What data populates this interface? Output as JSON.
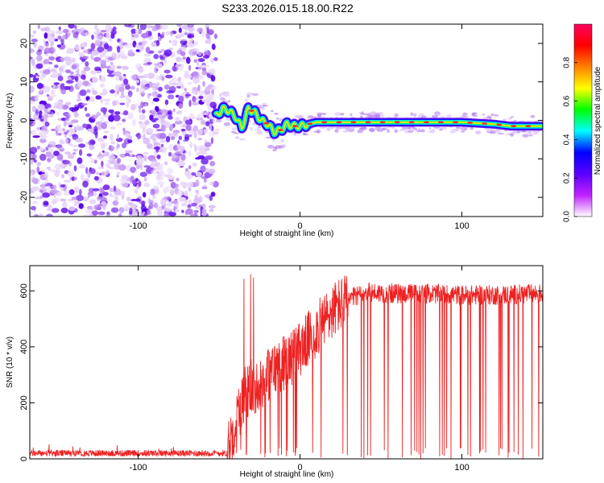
{
  "title": "S233.2026.015.18.00.R22",
  "chart_data": [
    {
      "type": "heatmap",
      "xlabel": "Height of straight line (km)",
      "ylabel": "Frequency (Hz)",
      "xlim": [
        -167,
        150
      ],
      "ylim": [
        -25,
        25
      ],
      "xticks": [
        -100,
        0,
        100
      ],
      "yticks": [
        -20,
        -10,
        0,
        10,
        20
      ],
      "noise_region_x": [
        -167,
        -52
      ],
      "ridge": {
        "x": [
          -52,
          -48,
          -44,
          -40,
          -36,
          -32,
          -28,
          -24,
          -20,
          -16,
          -12,
          -8,
          -4,
          0,
          5,
          10,
          20,
          40,
          60,
          80,
          100,
          120,
          130,
          140,
          148
        ],
        "freq": [
          1,
          3,
          2.5,
          1,
          -2,
          3,
          2,
          0,
          -1,
          -3,
          -2.5,
          -1,
          -1.5,
          -1.5,
          -1,
          -0.5,
          -0.5,
          -0.5,
          -0.5,
          -0.5,
          -0.5,
          -1,
          -1.5,
          -1.5,
          -1.5
        ]
      },
      "colorbar": {
        "label": "Normalized spectral amplitude",
        "range": [
          0,
          1
        ],
        "ticks": [
          "0.0",
          "0.2",
          "0.4",
          "0.6",
          "0.8"
        ],
        "tick_values": [
          0,
          0.2,
          0.4,
          0.6,
          0.8
        ],
        "colors": [
          "#ffffff",
          "#c020ff",
          "#5a00ff",
          "#0000ff",
          "#00ffff",
          "#00ff00",
          "#ffff00",
          "#ff8000",
          "#ff0000",
          "#ff0060"
        ]
      }
    },
    {
      "type": "line",
      "xlabel": "Height of straight line (km)",
      "ylabel": "SNR (10 * v/v)",
      "xlim": [
        -167,
        150
      ],
      "ylim": [
        0,
        690
      ],
      "xticks": [
        -100,
        0,
        100
      ],
      "yticks": [
        0,
        200,
        400,
        600
      ],
      "series": [
        {
          "name": "SNR",
          "color": "#ee2222",
          "profile_x": [
            -167,
            -45,
            -42,
            -38,
            -34,
            -30,
            -26,
            -20,
            -14,
            -8,
            -2,
            4,
            10,
            16,
            22,
            28,
            34,
            40,
            60,
            80,
            100,
            120,
            150
          ],
          "profile_y": [
            20,
            20,
            90,
            170,
            230,
            260,
            260,
            300,
            330,
            350,
            380,
            420,
            460,
            500,
            540,
            560,
            580,
            595,
            590,
            590,
            585,
            585,
            590
          ]
        }
      ]
    }
  ]
}
